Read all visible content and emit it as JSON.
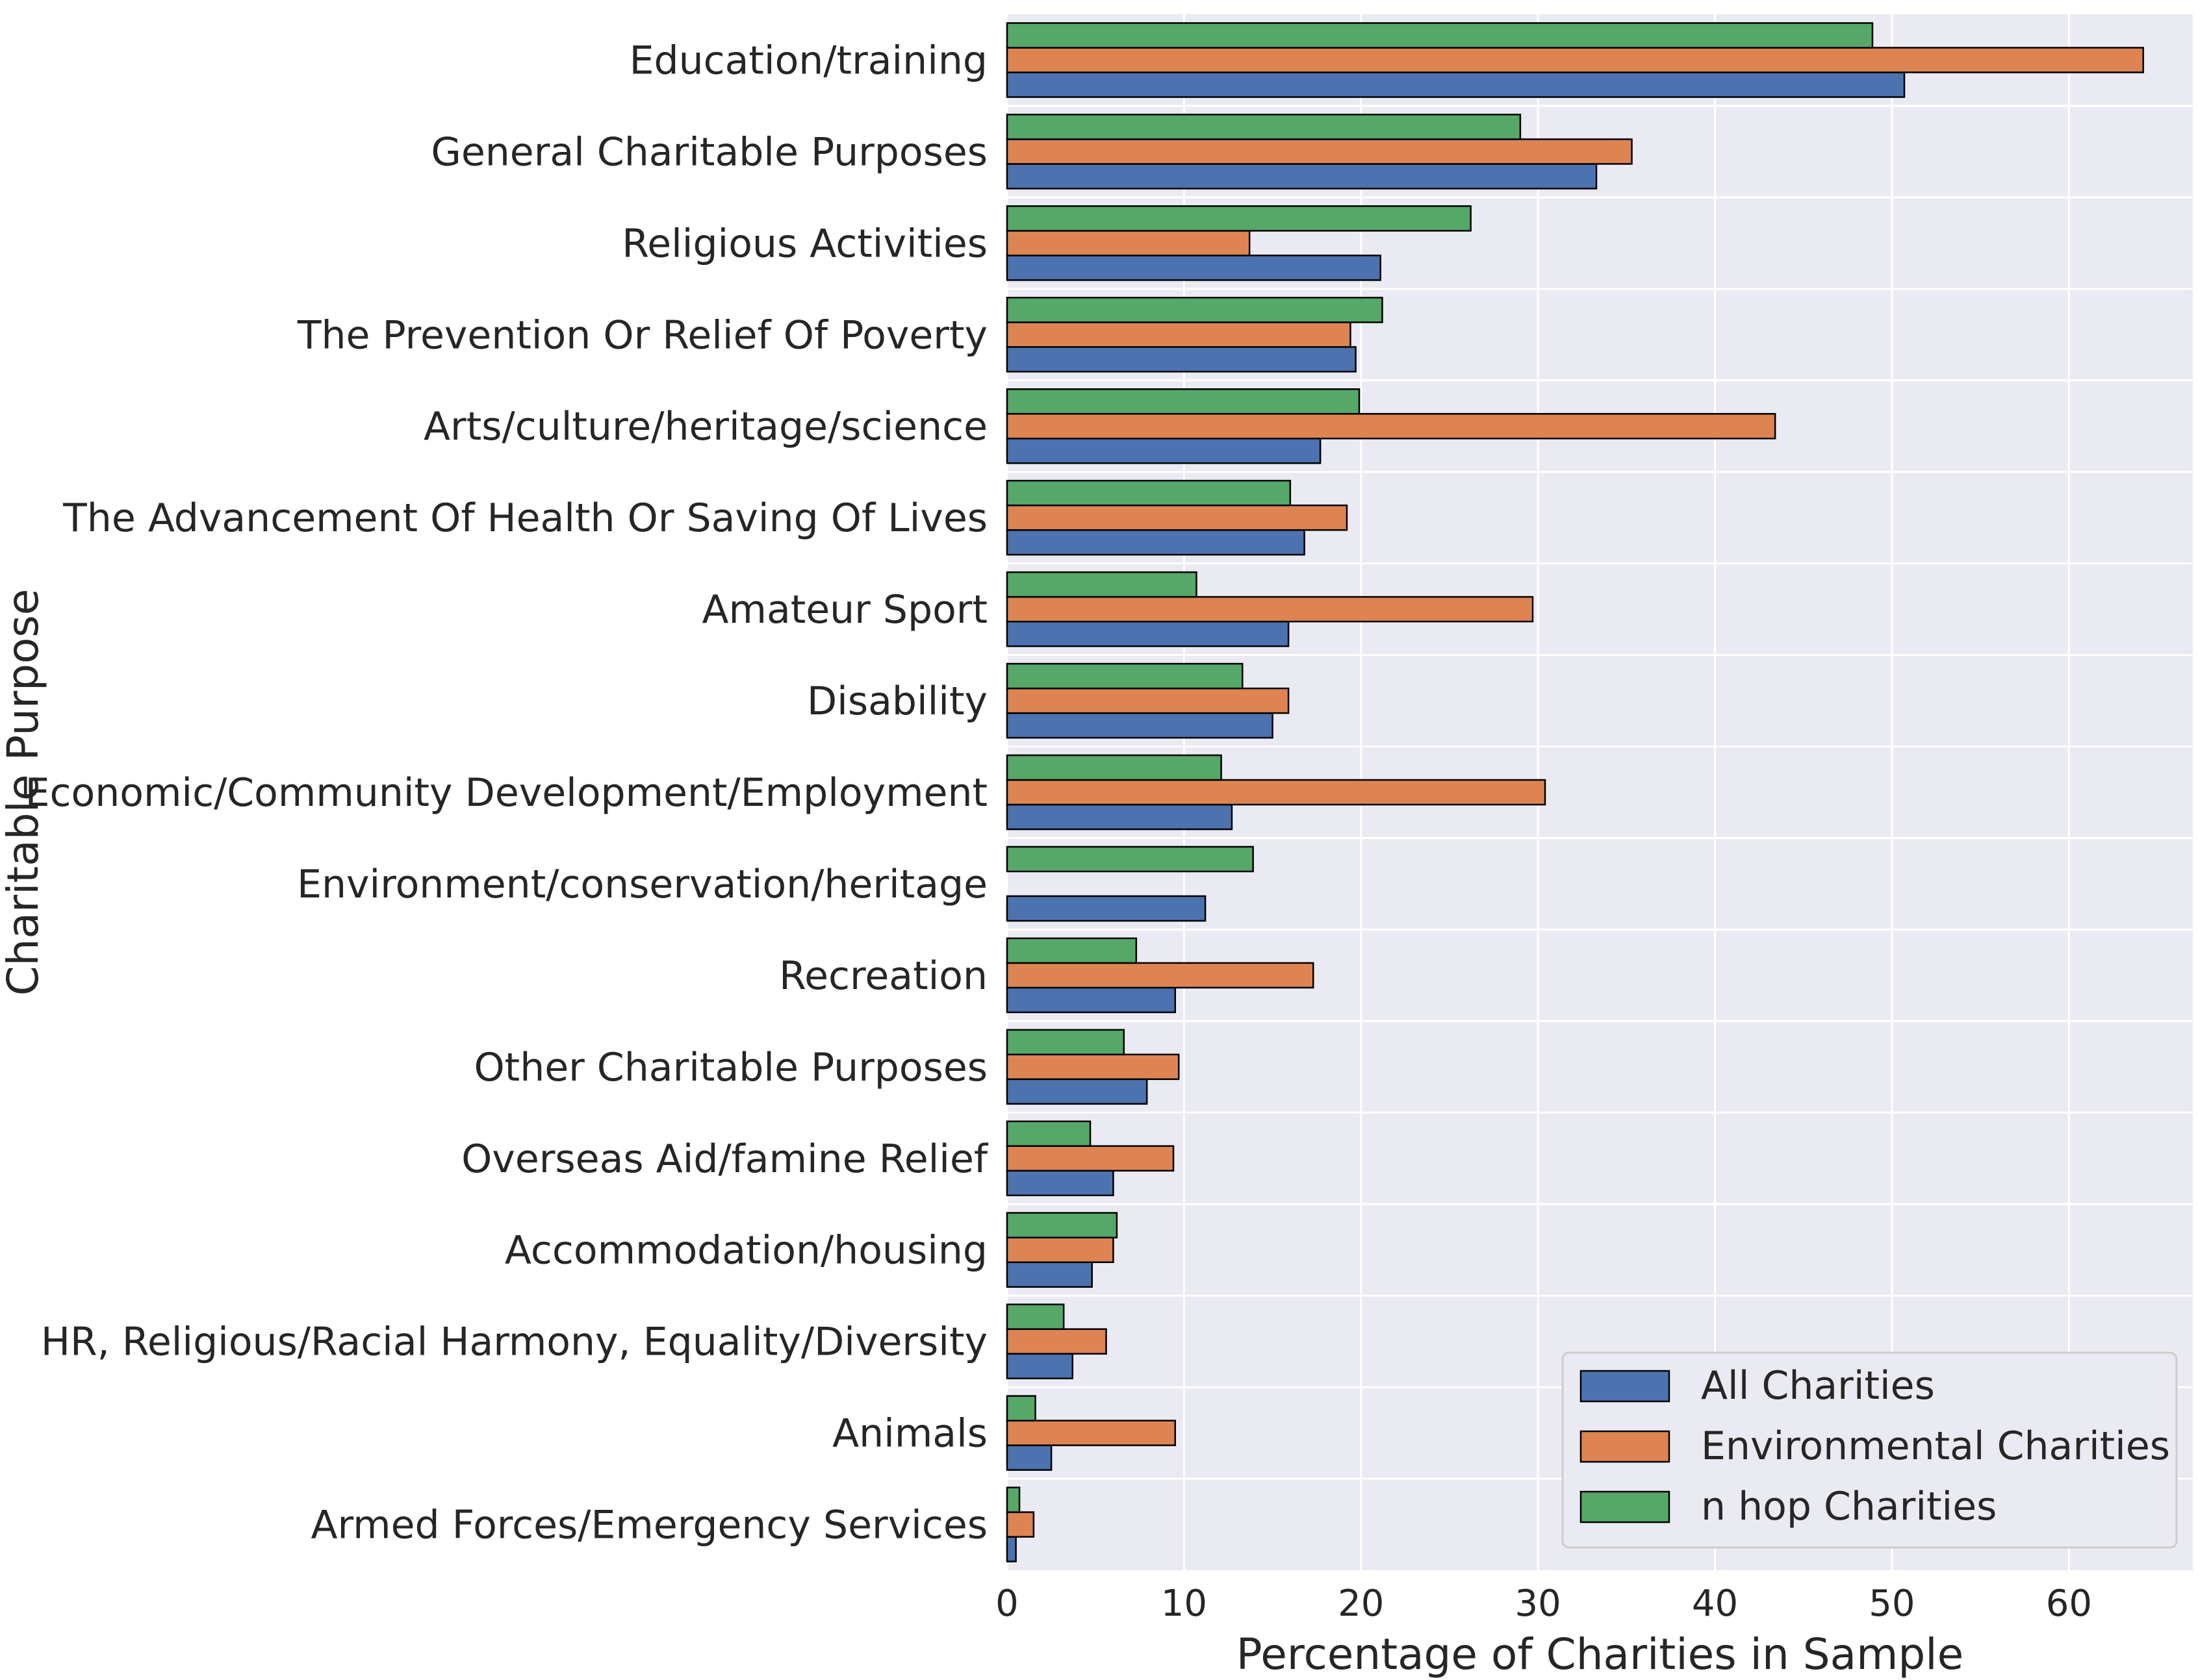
{
  "chart_data": {
    "type": "bar",
    "orientation": "horizontal",
    "title": "",
    "xlabel": "Percentage of Charities in Sample",
    "ylabel": "Charitable Purpose",
    "xlim": [
      0,
      67
    ],
    "xticks": [
      0,
      10,
      20,
      30,
      40,
      50,
      60
    ],
    "grid": true,
    "legend_position": "bottom-right",
    "categories": [
      "Education/training",
      "General Charitable Purposes",
      "Religious Activities",
      "The Prevention Or Relief Of Poverty",
      "Arts/culture/heritage/science",
      "The Advancement Of Health Or Saving Of Lives",
      "Amateur Sport",
      "Disability",
      "Economic/Community Development/Employment",
      "Environment/conservation/heritage",
      "Recreation",
      "Other Charitable Purposes",
      "Overseas Aid/famine Relief",
      "Accommodation/housing",
      "HR, Religious/Racial Harmony, Equality/Diversity",
      "Animals",
      "Armed Forces/Emergency Services"
    ],
    "series": [
      {
        "name": "All Charities",
        "color": "#4c72b0",
        "values": [
          50.7,
          33.3,
          21.1,
          19.7,
          17.7,
          16.8,
          15.9,
          15.0,
          12.7,
          11.2,
          9.5,
          7.9,
          6.0,
          4.8,
          3.7,
          2.5,
          0.5
        ]
      },
      {
        "name": "Environmental Charities",
        "color": "#dd8452",
        "values": [
          64.2,
          35.3,
          13.7,
          19.4,
          43.4,
          19.2,
          29.7,
          15.9,
          30.4,
          0,
          17.3,
          9.7,
          9.4,
          6.0,
          5.6,
          9.5,
          1.5
        ]
      },
      {
        "name": "n hop Charities",
        "color": "#55a868",
        "values": [
          48.9,
          29.0,
          26.2,
          21.2,
          19.9,
          16.0,
          10.7,
          13.3,
          12.1,
          13.9,
          7.3,
          6.6,
          4.7,
          6.2,
          3.2,
          1.6,
          0.7
        ]
      }
    ]
  }
}
